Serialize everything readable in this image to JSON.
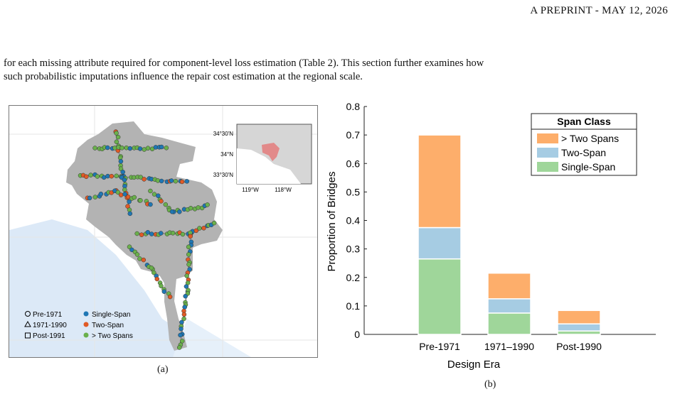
{
  "header": {
    "text": "A PREPRINT - MAY 12, 2026"
  },
  "paragraph": {
    "line1": "for each missing attribute required for component-level loss estimation (Table 2). This section further examines how",
    "line2": "such probabilistic imputations influence the repair cost estimation at the regional scale."
  },
  "figure_a": {
    "label": "(a)",
    "inset": {
      "lat_labels": [
        "34°30'N",
        "34°N",
        "33°30'N"
      ],
      "lon_labels": [
        "119°W",
        "118°W"
      ]
    },
    "legend": {
      "era": [
        "Pre-1971",
        "1971-1990",
        "Post-1991"
      ],
      "span": [
        "Single-Span",
        "Two-Span",
        "> Two Spans"
      ]
    },
    "colors": {
      "single": "#1f77b4",
      "two": "#e05a26",
      "multi": "#6ab04c",
      "land": "#b3b3b3",
      "sea": "#dce9f7"
    }
  },
  "figure_b": {
    "label": "(b)"
  },
  "chart_data": {
    "type": "bar",
    "stacked": true,
    "categories": [
      "Pre-1971",
      "1971–1990",
      "Post-1990"
    ],
    "series": [
      {
        "name": "Single-Span",
        "values": [
          0.265,
          0.075,
          0.012
        ],
        "color": "#9fd69a"
      },
      {
        "name": "Two-Span",
        "values": [
          0.11,
          0.05,
          0.025
        ],
        "color": "#a6cce3"
      },
      {
        "name": "> Two Spans",
        "values": [
          0.325,
          0.09,
          0.047
        ],
        "color": "#fdae6b"
      }
    ],
    "legend_title": "Span Class",
    "legend_order": [
      "> Two Spans",
      "Two-Span",
      "Single-Span"
    ],
    "legend_position": "top-right",
    "xlabel": "Design Era",
    "ylabel": "Proportion of Bridges",
    "ylim": [
      0,
      0.8
    ],
    "yticks": [
      "0",
      "0.1",
      "0.2",
      "0.3",
      "0.4",
      "0.5",
      "0.6",
      "0.7",
      "0.8"
    ],
    "grid": false
  }
}
